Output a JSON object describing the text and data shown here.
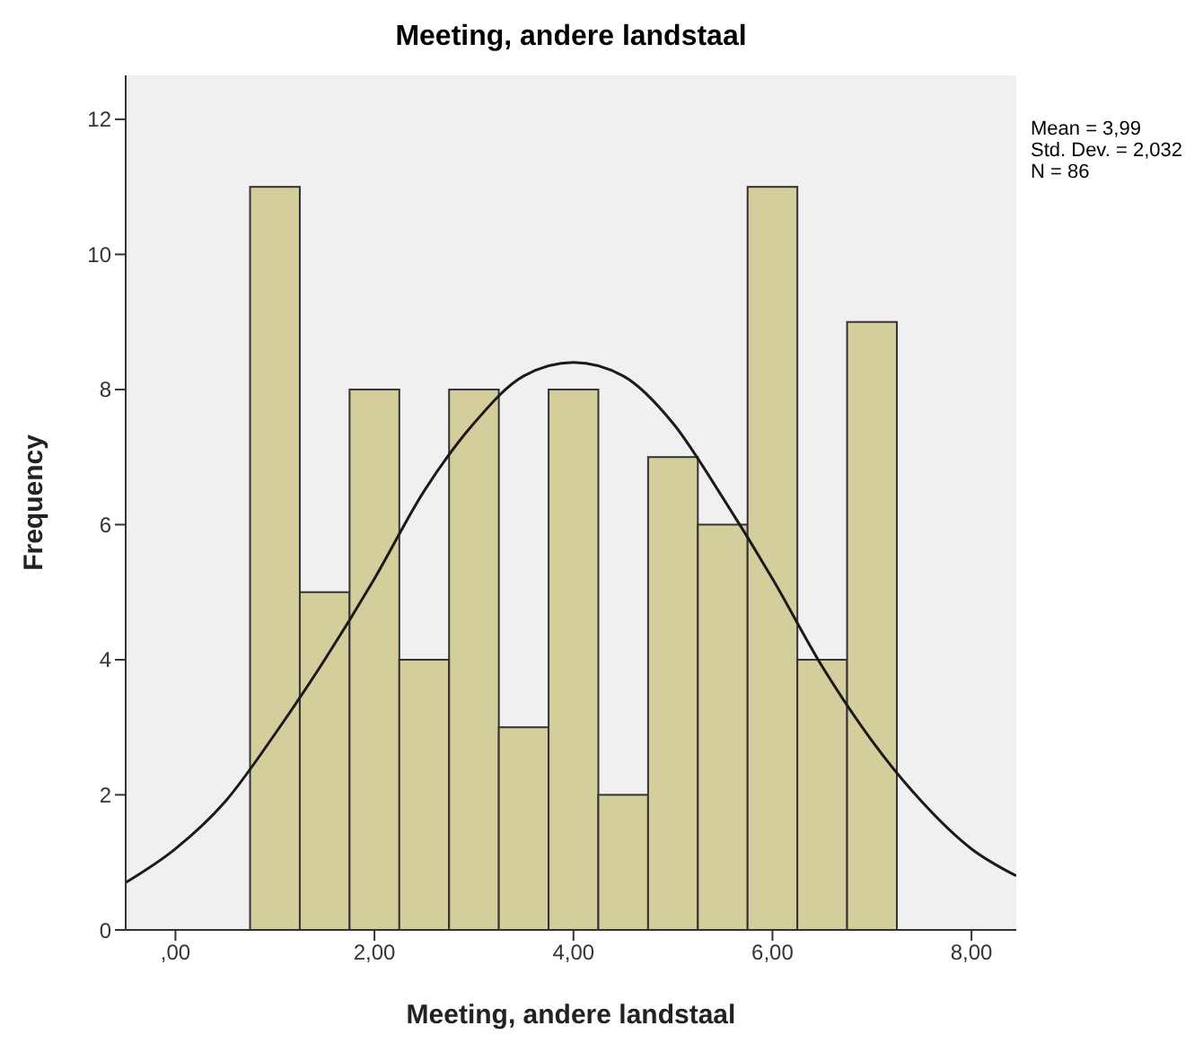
{
  "chart_data": {
    "type": "histogram",
    "title": "Meeting, andere landstaal",
    "xlabel": "Meeting, andere landstaal",
    "ylabel": "Frequency",
    "bins": [
      0.75,
      1.25,
      1.75,
      2.25,
      2.75,
      3.25,
      3.75,
      4.25,
      4.75,
      5.25,
      5.75,
      6.25,
      6.75,
      7.25
    ],
    "values": [
      11,
      5,
      8,
      4,
      8,
      3,
      8,
      2,
      7,
      6,
      11,
      4,
      9
    ],
    "color": "#d3ce9c",
    "series": [
      {
        "type": "line",
        "color": "#1a1a1a",
        "x": [
          -0.5,
          0,
          0.5,
          1,
          1.5,
          2,
          2.5,
          3,
          3.5,
          4,
          4.5,
          5,
          5.5,
          6,
          6.5,
          7,
          7.5,
          8,
          8.45
        ],
        "values": [
          0.7,
          1.2,
          1.9,
          2.9,
          4.0,
          5.2,
          6.5,
          7.5,
          8.2,
          8.4,
          8.2,
          7.5,
          6.4,
          5.2,
          3.9,
          2.8,
          1.9,
          1.2,
          0.8
        ]
      }
    ],
    "xlim": [
      -0.5,
      8.45
    ],
    "xticks": [
      {
        "value": 0,
        "label": ",00"
      },
      {
        "value": 2,
        "label": "2,00"
      },
      {
        "value": 4,
        "label": "4,00"
      },
      {
        "value": 6,
        "label": "6,00"
      },
      {
        "value": 8,
        "label": "8,00"
      }
    ],
    "ylim": [
      0,
      12.65
    ],
    "yticks": [
      0,
      2,
      4,
      6,
      8,
      10,
      12
    ],
    "annotations": [
      "Mean = 3,99",
      "Std. Dev. = 2,032",
      "N = 86"
    ],
    "legend": false,
    "grid": false
  }
}
